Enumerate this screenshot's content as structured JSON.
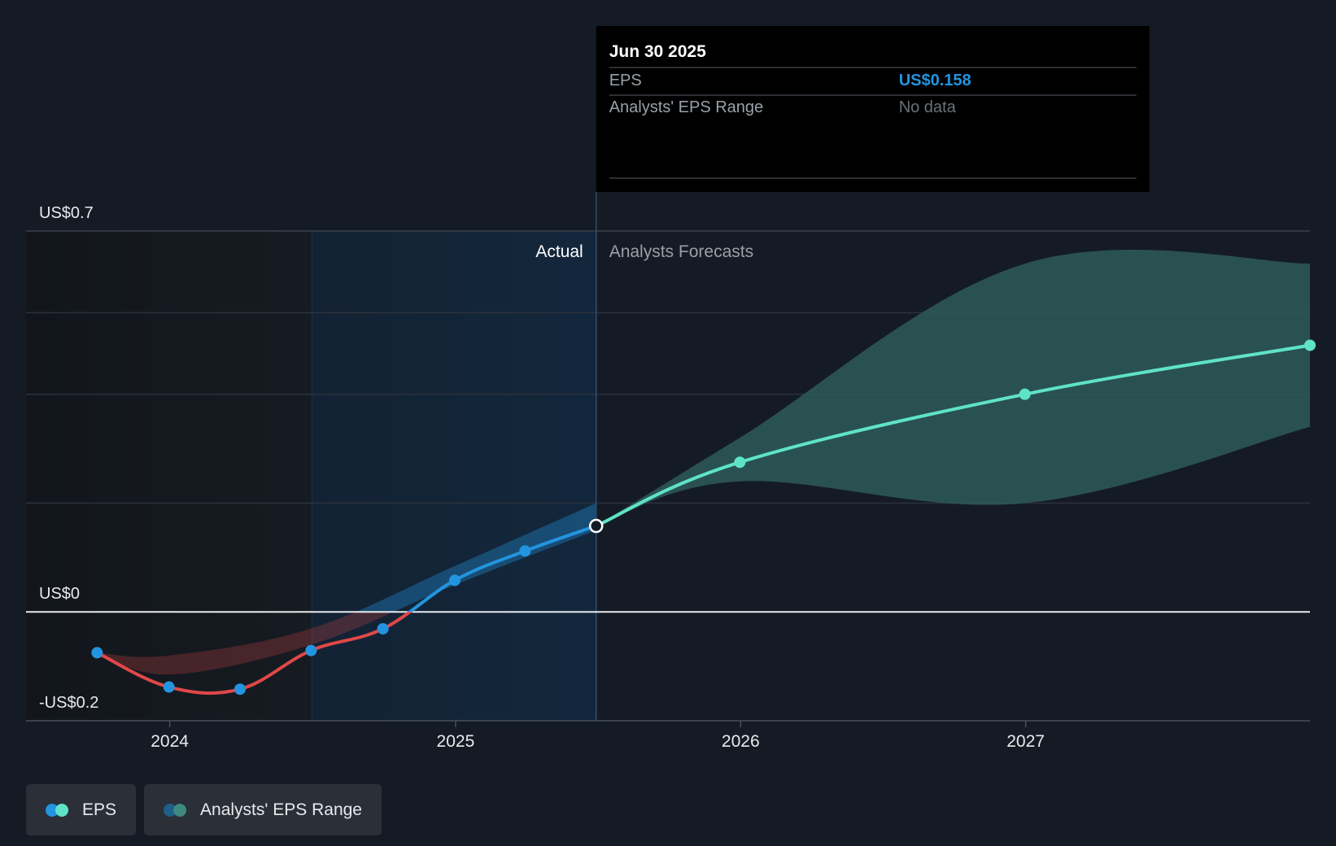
{
  "chart_data": {
    "type": "line",
    "title": "",
    "xlabel": "",
    "ylabel": "",
    "x_ticks": [
      "2024",
      "2025",
      "2026",
      "2027"
    ],
    "y_ticks": [
      {
        "value": 0.7,
        "label": "US$0.7"
      },
      {
        "value": 0,
        "label": "US$0"
      },
      {
        "value": -0.2,
        "label": "-US$0.2"
      }
    ],
    "ylim": [
      -0.2,
      0.7
    ],
    "xlim": [
      "2023-07-01",
      "2027-12-31"
    ],
    "grid": true,
    "section_labels": {
      "actual": "Actual",
      "forecast": "Analysts Forecasts"
    },
    "series": [
      {
        "name": "EPS",
        "kind": "actual",
        "points": [
          {
            "x": "2023-09-30",
            "y": -0.075
          },
          {
            "x": "2023-12-31",
            "y": -0.138
          },
          {
            "x": "2024-03-31",
            "y": -0.142
          },
          {
            "x": "2024-06-30",
            "y": -0.071
          },
          {
            "x": "2024-09-30",
            "y": -0.031
          },
          {
            "x": "2024-12-31",
            "y": 0.058
          },
          {
            "x": "2025-03-31",
            "y": 0.112
          },
          {
            "x": "2025-06-30",
            "y": 0.158
          }
        ]
      },
      {
        "name": "EPS",
        "kind": "forecast",
        "points": [
          {
            "x": "2025-06-30",
            "y": 0.158
          },
          {
            "x": "2025-12-31",
            "y": 0.275
          },
          {
            "x": "2026-12-31",
            "y": 0.4
          },
          {
            "x": "2027-12-31",
            "y": 0.49
          }
        ]
      }
    ],
    "forecast_range": {
      "name": "Analysts' EPS Range",
      "points": [
        {
          "x": "2025-06-30",
          "low": 0.158,
          "high": 0.158
        },
        {
          "x": "2025-12-31",
          "low": 0.24,
          "high": 0.32
        },
        {
          "x": "2026-12-31",
          "low": 0.2,
          "high": 0.64
        },
        {
          "x": "2027-12-31",
          "low": 0.34,
          "high": 0.64
        }
      ]
    },
    "tooltip": {
      "date": "Jun 30 2025",
      "rows": [
        {
          "label": "EPS",
          "value": "US$0.158"
        },
        {
          "label": "Analysts' EPS Range",
          "value": "No data"
        }
      ]
    },
    "legend": {
      "placement": "bottom-left",
      "items": [
        {
          "label": "EPS",
          "colors": [
            "#2394df",
            "#5fe3c8"
          ]
        },
        {
          "label": "Analysts' EPS Range",
          "colors": [
            "#1f5f8a",
            "#3e8a80"
          ]
        }
      ]
    },
    "colors": {
      "actual_positive": "#2394df",
      "actual_negative": "#e04848",
      "forecast": "#5fe3c8",
      "forecast_band": "#2e5a5b",
      "actual_band": "#2394df",
      "highlight": "#13273c",
      "zero_line": "#e8eaed"
    }
  }
}
